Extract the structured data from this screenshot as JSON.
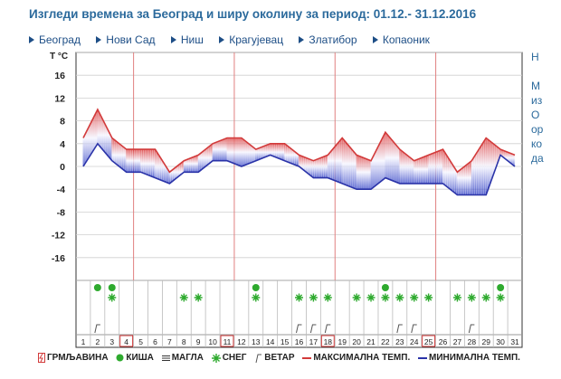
{
  "header": {
    "title": "Изгледи времена за Београд и ширу околину за период: 01.12.- 31.12.2016"
  },
  "nav": {
    "items": [
      {
        "label": "Београд"
      },
      {
        "label": "Нови Сад"
      },
      {
        "label": "Ниш"
      },
      {
        "label": "Крагујевац"
      },
      {
        "label": "Златибор"
      },
      {
        "label": "Копаоник"
      }
    ]
  },
  "right_panel": {
    "lines": [
      "Н",
      "М",
      "из",
      "О",
      "ор",
      "ко",
      "да"
    ]
  },
  "chart_data": {
    "type": "line",
    "title": "",
    "ylabel": "T °C",
    "ylim": [
      -20,
      20
    ],
    "yticks": [
      16,
      12,
      8,
      4,
      0,
      -4,
      -8,
      -12,
      -16
    ],
    "x": [
      1,
      2,
      3,
      4,
      5,
      6,
      7,
      8,
      9,
      10,
      11,
      12,
      13,
      14,
      15,
      16,
      17,
      18,
      19,
      20,
      21,
      22,
      23,
      24,
      25,
      26,
      27,
      28,
      29,
      30,
      31
    ],
    "highlighted_days": [
      4,
      11,
      18,
      25
    ],
    "series": [
      {
        "name": "МАКСИМАЛНА ТЕМП.",
        "color": "#d23a3a",
        "values": [
          5,
          10,
          5,
          3,
          3,
          3,
          -1,
          1,
          2,
          4,
          5,
          5,
          3,
          4,
          4,
          2,
          1,
          2,
          5,
          2,
          1,
          6,
          3,
          1,
          2,
          3,
          -1,
          1,
          5,
          3,
          2
        ]
      },
      {
        "name": "МИНИМАЛНА ТЕМП.",
        "color": "#2a33a8",
        "values": [
          0,
          4,
          1,
          -1,
          -1,
          -2,
          -3,
          -1,
          -1,
          1,
          1,
          0,
          1,
          2,
          1,
          0,
          -2,
          -2,
          -3,
          -4,
          -4,
          -2,
          -3,
          -3,
          -3,
          -3,
          -5,
          -5,
          -5,
          2,
          0
        ]
      }
    ],
    "weather": {
      "thunderstorm": [],
      "rain": [
        2,
        3,
        13,
        22,
        30
      ],
      "fog": [],
      "snow": [
        3,
        8,
        9,
        13,
        16,
        17,
        18,
        20,
        21,
        22,
        23,
        24,
        25,
        27,
        28,
        29,
        30
      ],
      "wind": [
        2,
        16,
        17,
        18,
        23,
        24,
        28
      ]
    },
    "legend": {
      "thunderstorm": "ГРМЉАВИНА",
      "rain": "КИША",
      "fog": "МАГЛА",
      "snow": "СНЕГ",
      "wind": "ВЕТАР",
      "max": "МАКСИМАЛНА ТЕМП.",
      "min": "МИНИМАЛНА ТЕМП."
    }
  }
}
